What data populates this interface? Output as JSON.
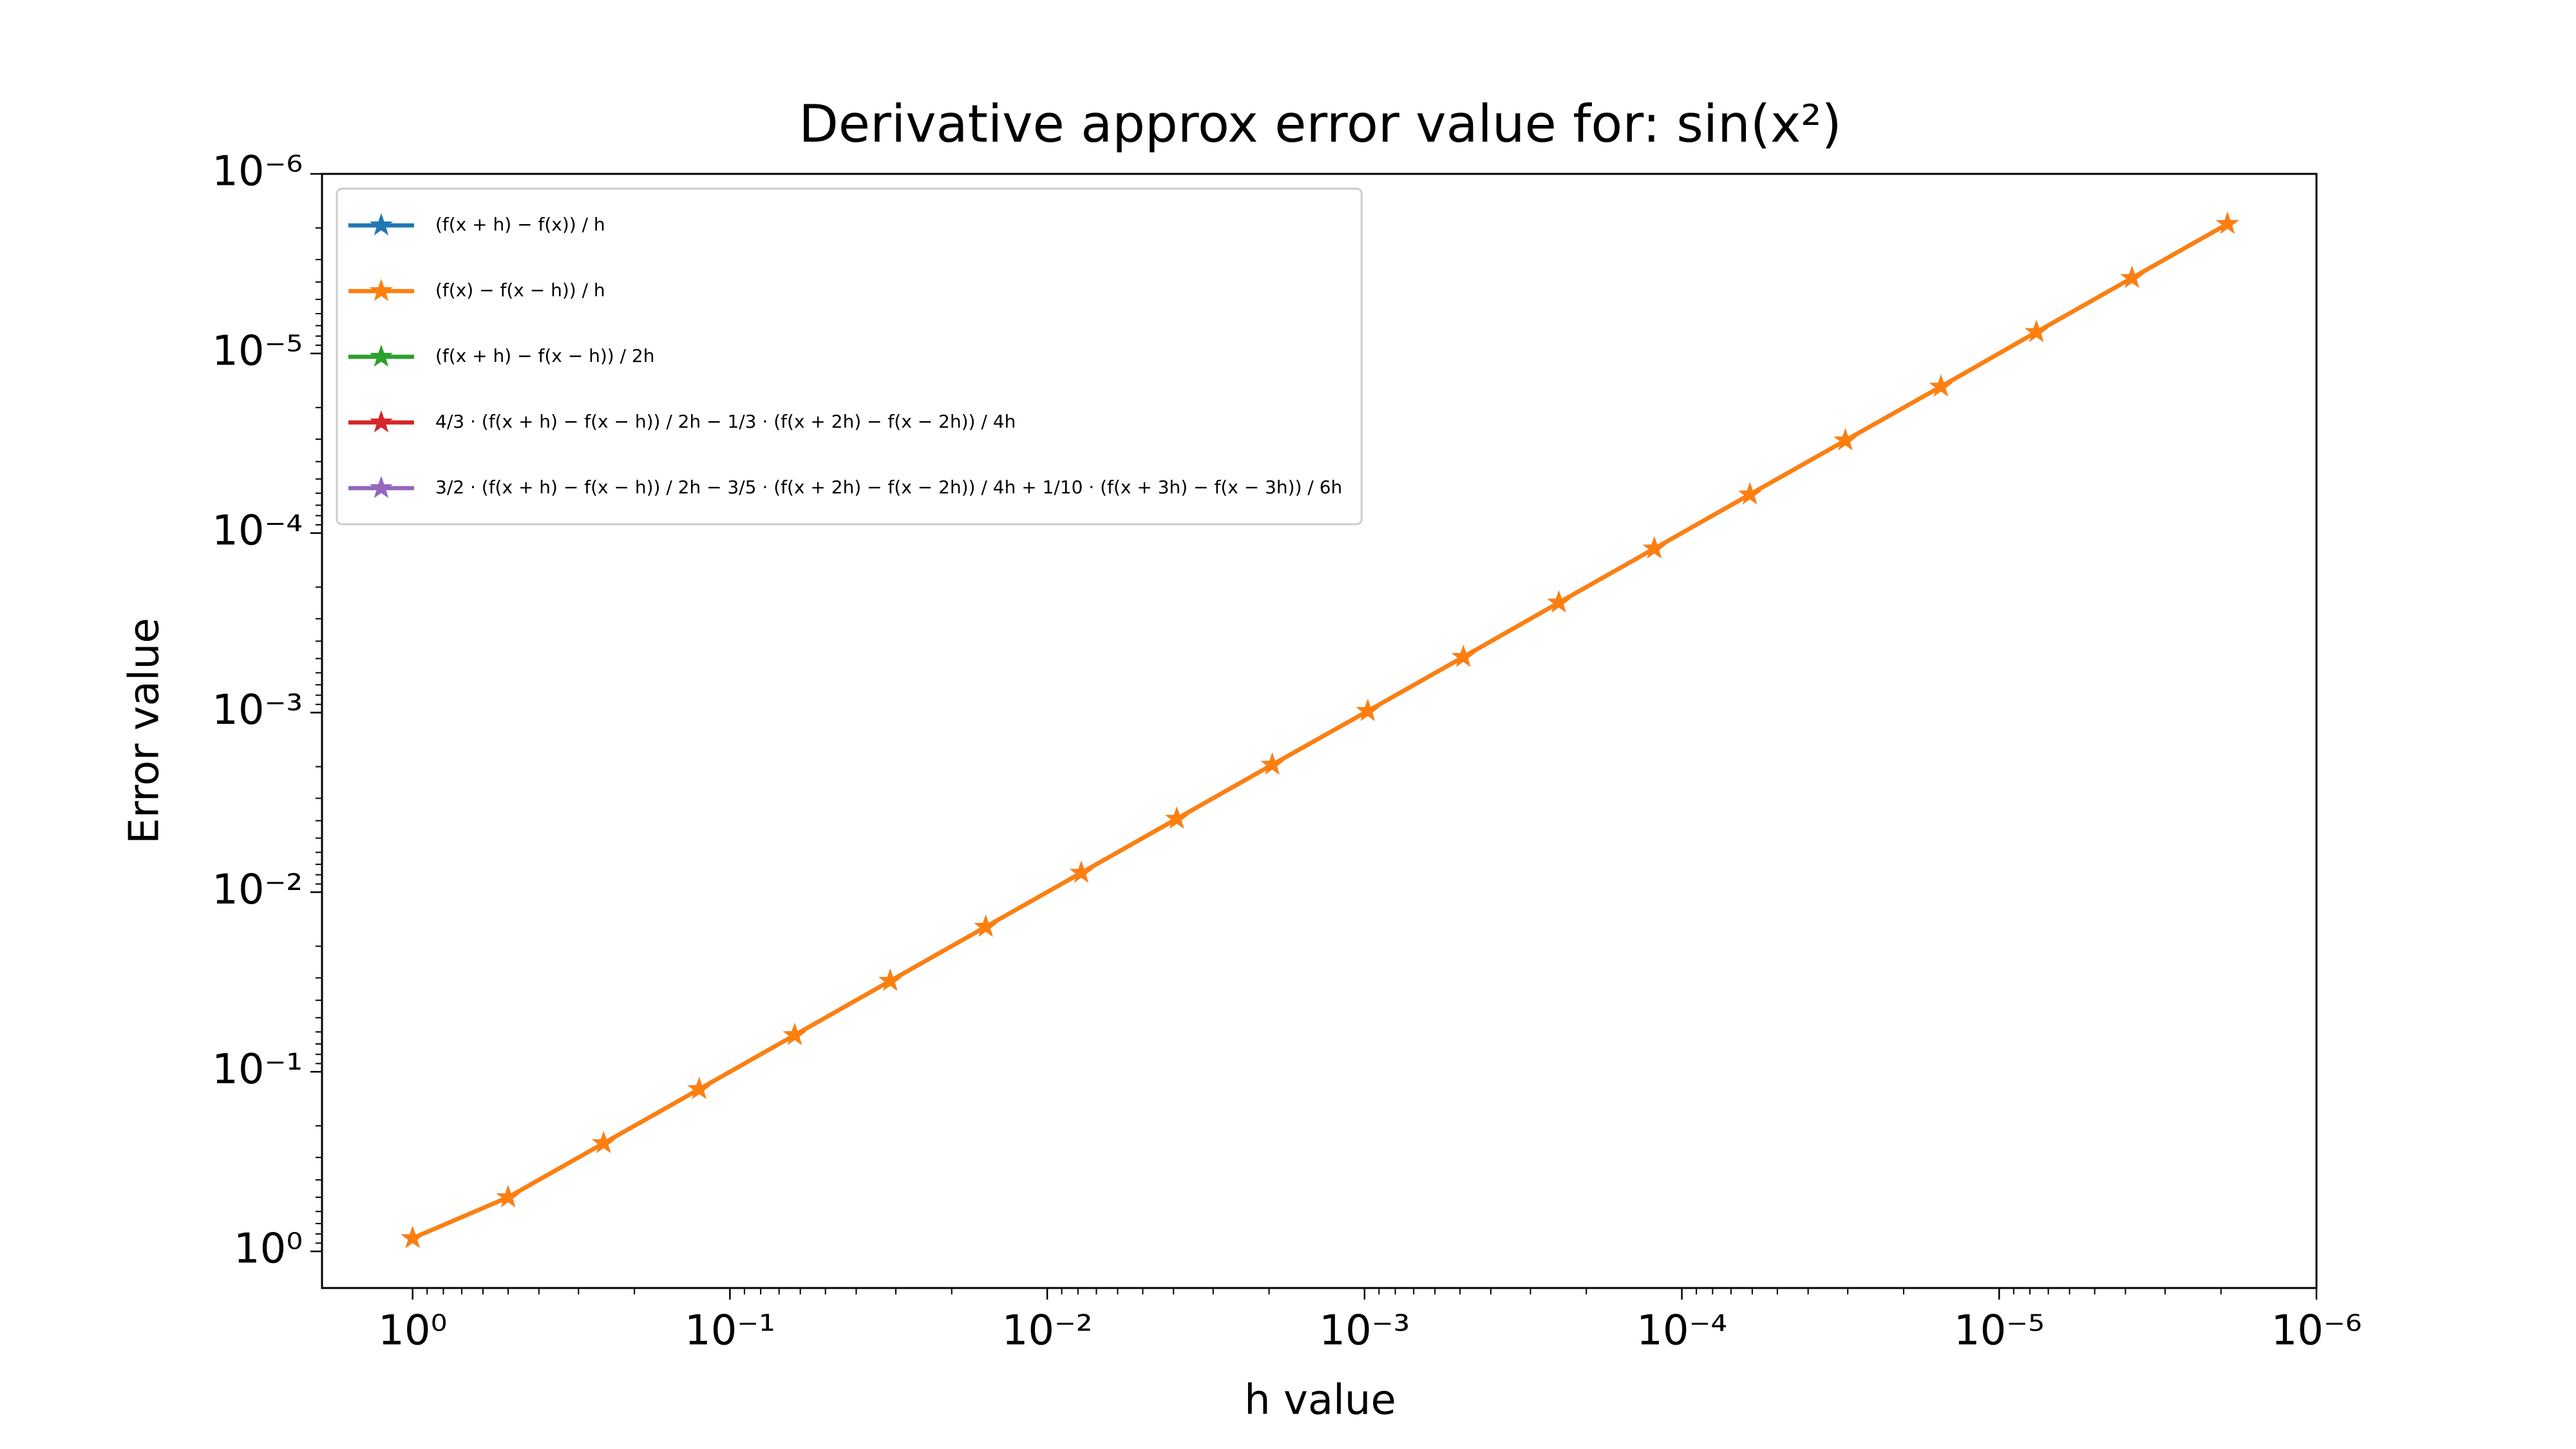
{
  "chart_data": {
    "type": "line",
    "title": "Derivative approx error value for: sin(x²)",
    "x_label": "h value",
    "y_label": "Error value",
    "log_scale": true,
    "legend": "upper left",
    "x": [
      1,
      0.5,
      0.25,
      0.125,
      0.0625,
      0.03125,
      0.015625,
      0.0078125,
      0.00390625,
      0.001953125,
      0.0009765625,
      0.00048828125,
      0.000244140625,
      0.0001220703125,
      6.103515625e-05,
      3.0517578125e-05,
      1.52587890625e-05,
      7.62939453125e-06,
      3.814697265625e-06,
      1.9073486328125e-06
    ],
    "series": [
      {
        "name": "(f(x + h) − f(x)) / h",
        "color": "#1f77b4",
        "values": [
          0.845,
          0.5,
          0.25,
          0.125,
          0.0625,
          0.0312,
          0.0156,
          0.0078,
          0.0039,
          0.00195,
          0.00098,
          0.00049,
          0.000244,
          0.000122,
          6.1e-05,
          3.05e-05,
          1.53e-05,
          7.6e-06,
          3.8e-06,
          1.9e-06
        ]
      },
      {
        "name": "(f(x) − f(x − h)) / h",
        "color": "#ff7f0e",
        "values": [
          0.845,
          0.5,
          0.25,
          0.125,
          0.0625,
          0.0312,
          0.0156,
          0.0078,
          0.0039,
          0.00195,
          0.00098,
          0.00049,
          0.000244,
          0.000122,
          6.1e-05,
          3.05e-05,
          1.53e-05,
          7.6e-06,
          3.8e-06,
          1.9e-06
        ]
      },
      {
        "name": "(f(x + h) − f(x − h)) / 2h",
        "color": "#2ca02c",
        "values": [
          null,
          null,
          null,
          null,
          null,
          null,
          null,
          null,
          null,
          null,
          null,
          null,
          null,
          null,
          null,
          null,
          null,
          null,
          null,
          null
        ]
      },
      {
        "name": "4/3 · (f(x + h) − f(x − h)) / 2h − 1/3 · (f(x + 2h) − f(x − 2h)) / 4h",
        "color": "#d62728",
        "values": [
          null,
          null,
          null,
          null,
          null,
          null,
          null,
          null,
          null,
          null,
          null,
          null,
          null,
          null,
          null,
          null,
          null,
          null,
          null,
          null
        ]
      },
      {
        "name": "3/2 · (f(x + h) − f(x − h)) / 2h − 3/5 · (f(x + 2h) − f(x − 2h)) / 4h + 1/10 · (f(x + 3h) − f(x − 3h)) / 6h",
        "color": "#9467bd",
        "values": [
          null,
          null,
          null,
          null,
          null,
          null,
          null,
          null,
          null,
          null,
          null,
          null,
          null,
          null,
          null,
          null,
          null,
          null,
          null,
          null
        ]
      }
    ],
    "xlim": [
      1.93,
      1e-06
    ],
    "xticks": [
      {
        "value": 1,
        "label": "10⁰"
      },
      {
        "value": 0.1,
        "label": "10⁻¹"
      },
      {
        "value": 0.01,
        "label": "10⁻²"
      },
      {
        "value": 0.001,
        "label": "10⁻³"
      },
      {
        "value": 0.0001,
        "label": "10⁻⁴"
      },
      {
        "value": 1e-05,
        "label": "10⁻⁵"
      },
      {
        "value": 1e-06,
        "label": "10⁻⁶"
      }
    ],
    "ylim": [
      1.6,
      1e-06
    ],
    "yticks": [
      {
        "value": 1,
        "label": "10⁰"
      },
      {
        "value": 0.1,
        "label": "10⁻¹"
      },
      {
        "value": 0.01,
        "label": "10⁻²"
      },
      {
        "value": 0.001,
        "label": "10⁻³"
      },
      {
        "value": 0.0001,
        "label": "10⁻⁴"
      },
      {
        "value": 1e-05,
        "label": "10⁻⁵"
      },
      {
        "value": 1e-06,
        "label": "10⁻⁶"
      }
    ]
  }
}
